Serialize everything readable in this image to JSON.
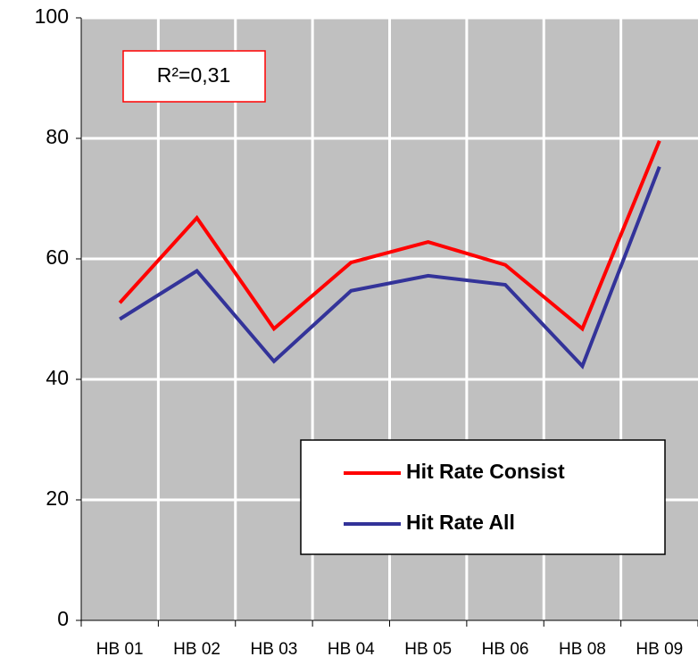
{
  "chart_data": {
    "type": "line",
    "categories": [
      "HB 01",
      "HB 02",
      "HB 03",
      "HB 04",
      "HB 05",
      "HB 06",
      "HB 08",
      "HB 09"
    ],
    "series": [
      {
        "name": "Hit Rate Consist",
        "color": "#ff0000",
        "values": [
          52.7,
          66.8,
          48.4,
          59.4,
          62.8,
          59.0,
          48.4,
          79.6
        ]
      },
      {
        "name": "Hit Rate All",
        "color": "#333399",
        "values": [
          50.0,
          58.0,
          43.0,
          54.7,
          57.2,
          55.7,
          42.2,
          75.3
        ]
      }
    ],
    "annotation": "R²=0,31",
    "ylim": [
      0,
      100
    ],
    "yticks": [
      0,
      20,
      40,
      60,
      80,
      100
    ],
    "grid": true,
    "legend": "lower right",
    "background": "#c0c0c0"
  }
}
